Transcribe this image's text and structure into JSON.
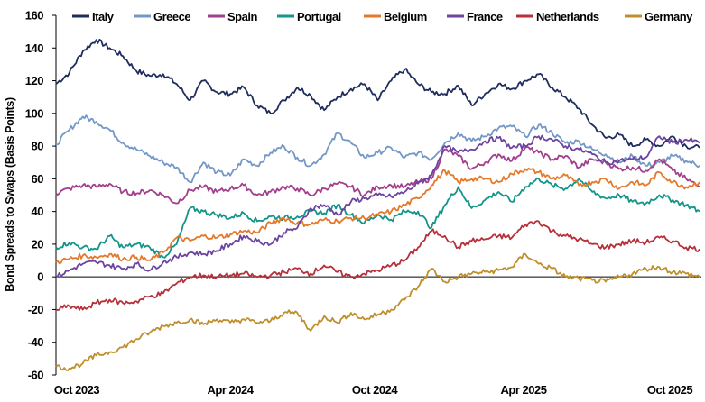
{
  "chart_data": {
    "type": "line",
    "title": "",
    "xlabel": "",
    "ylabel": "Bond Spreads to Swaps (Basis Points)",
    "ylim": [
      -60,
      160
    ],
    "yticks": [
      160,
      140,
      120,
      100,
      80,
      60,
      40,
      20,
      0,
      -20,
      -40,
      -60
    ],
    "xtick_labels": [
      "Oct 2023",
      "Apr 2024",
      "Oct 2024",
      "Apr 2025",
      "Oct 2025"
    ],
    "x_description": "Approximately half-monthly samples from late Sep 2023 to Oct 2025 (49 points)",
    "grid": false,
    "legend_position": "top",
    "zero_line": true,
    "series": [
      {
        "name": "Italy",
        "color": "#1f2d5c",
        "values": [
          118,
          125,
          138,
          145,
          140,
          135,
          126,
          123,
          124,
          118,
          108,
          120,
          113,
          112,
          116,
          105,
          100,
          108,
          116,
          111,
          102,
          110,
          115,
          118,
          108,
          120,
          127,
          118,
          113,
          112,
          117,
          105,
          112,
          118,
          115,
          120,
          124,
          116,
          110,
          103,
          93,
          85,
          87,
          80,
          84,
          80,
          86,
          80,
          79
        ]
      },
      {
        "name": "Greece",
        "color": "#7398c6",
        "values": [
          81,
          90,
          98,
          95,
          90,
          82,
          78,
          74,
          70,
          67,
          58,
          70,
          64,
          62,
          72,
          68,
          76,
          80,
          73,
          68,
          75,
          88,
          82,
          73,
          76,
          79,
          73,
          76,
          72,
          82,
          88,
          83,
          86,
          91,
          92,
          86,
          93,
          88,
          82,
          83,
          78,
          75,
          70,
          74,
          68,
          70,
          74,
          71,
          68
        ]
      },
      {
        "name": "Spain",
        "color": "#a23f8c",
        "values": [
          51,
          54,
          56,
          55,
          57,
          52,
          51,
          53,
          50,
          45,
          53,
          55,
          52,
          54,
          56,
          50,
          52,
          55,
          54,
          50,
          54,
          57,
          55,
          50,
          55,
          56,
          55,
          58,
          60,
          78,
          74,
          66,
          70,
          75,
          71,
          79,
          76,
          72,
          74,
          67,
          72,
          70,
          66,
          67,
          65,
          72,
          65,
          60,
          55
        ]
      },
      {
        "name": "Portugal",
        "color": "#13958a",
        "values": [
          18,
          21,
          18,
          17,
          25,
          18,
          20,
          18,
          12,
          20,
          42,
          40,
          38,
          36,
          39,
          34,
          37,
          36,
          37,
          40,
          39,
          44,
          38,
          33,
          38,
          35,
          40,
          40,
          30,
          44,
          55,
          42,
          47,
          52,
          46,
          55,
          60,
          56,
          54,
          60,
          52,
          48,
          50,
          46,
          45,
          50,
          47,
          44,
          40
        ]
      },
      {
        "name": "Belgium",
        "color": "#e4792b",
        "values": [
          9,
          11,
          13,
          12,
          14,
          11,
          12,
          10,
          15,
          24,
          22,
          25,
          24,
          26,
          28,
          27,
          33,
          36,
          33,
          32,
          35,
          34,
          36,
          36,
          38,
          40,
          44,
          48,
          56,
          65,
          58,
          60,
          60,
          58,
          63,
          66,
          64,
          60,
          62,
          56,
          58,
          60,
          54,
          58,
          56,
          64,
          58,
          55,
          58
        ]
      },
      {
        "name": "France",
        "color": "#6c44a0",
        "values": [
          0,
          4,
          8,
          9,
          7,
          5,
          8,
          4,
          9,
          12,
          15,
          14,
          16,
          20,
          25,
          22,
          20,
          27,
          30,
          42,
          44,
          38,
          46,
          48,
          50,
          49,
          52,
          57,
          62,
          80,
          76,
          78,
          83,
          85,
          79,
          80,
          86,
          84,
          80,
          78,
          75,
          70,
          71,
          72,
          73,
          86,
          82,
          84,
          82
        ]
      },
      {
        "name": "Netherlands",
        "color": "#b5303a",
        "values": [
          -20,
          -18,
          -20,
          -16,
          -14,
          -16,
          -15,
          -12,
          -10,
          -4,
          0,
          1,
          0,
          1,
          2,
          0,
          1,
          3,
          5,
          2,
          7,
          3,
          0,
          2,
          4,
          7,
          10,
          18,
          28,
          25,
          18,
          22,
          23,
          25,
          24,
          32,
          34,
          28,
          25,
          23,
          20,
          18,
          20,
          22,
          21,
          24,
          22,
          18,
          17
        ]
      },
      {
        "name": "Germany",
        "color": "#bf8f2e",
        "values": [
          -55,
          -56,
          -53,
          -48,
          -46,
          -43,
          -38,
          -34,
          -30,
          -28,
          -26,
          -29,
          -26,
          -28,
          -26,
          -28,
          -27,
          -22,
          -22,
          -33,
          -24,
          -28,
          -22,
          -26,
          -23,
          -20,
          -14,
          -6,
          5,
          -3,
          0,
          2,
          3,
          4,
          6,
          14,
          8,
          5,
          0,
          -1,
          -2,
          -3,
          0,
          2,
          5,
          6,
          3,
          2,
          0
        ]
      }
    ]
  }
}
